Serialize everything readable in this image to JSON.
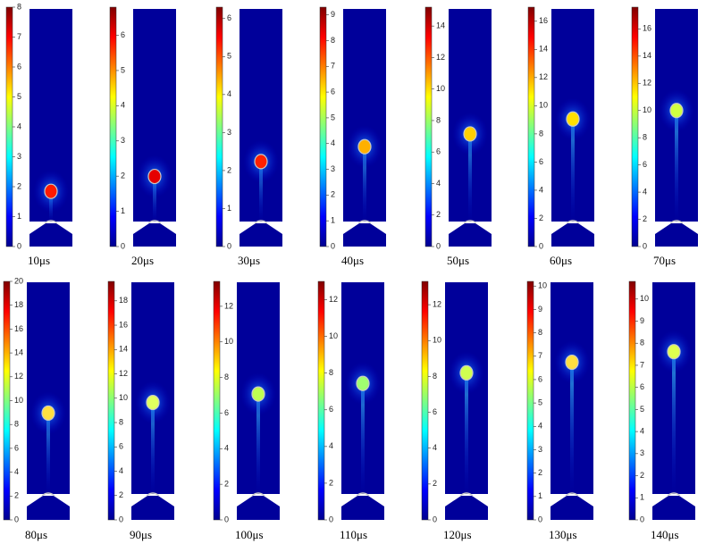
{
  "panels": [
    {
      "label": "10μs",
      "lim": [
        0,
        8
      ],
      "ticks": [
        0,
        1,
        2,
        3,
        4,
        5,
        6,
        7,
        8
      ]
    },
    {
      "label": "20μs",
      "lim": [
        0,
        6.8
      ],
      "ticks": [
        0,
        1,
        2,
        3,
        4,
        5,
        6
      ]
    },
    {
      "label": "30μs",
      "lim": [
        0,
        6.3
      ],
      "ticks": [
        0,
        1,
        2,
        3,
        4,
        5,
        6
      ]
    },
    {
      "label": "40μs",
      "lim": [
        0,
        9.3
      ],
      "ticks": [
        0,
        1,
        2,
        3,
        4,
        5,
        6,
        7,
        8,
        9
      ]
    },
    {
      "label": "50μs",
      "lim": [
        0,
        15.2
      ],
      "ticks": [
        0,
        2,
        4,
        6,
        8,
        10,
        12,
        14
      ]
    },
    {
      "label": "60μs",
      "lim": [
        0,
        17
      ],
      "ticks": [
        0,
        2,
        4,
        6,
        8,
        10,
        12,
        14,
        16
      ]
    },
    {
      "label": "70μs",
      "lim": [
        0,
        17.6
      ],
      "ticks": [
        0,
        2,
        4,
        6,
        8,
        10,
        12,
        14,
        16
      ]
    },
    {
      "label": "80μs",
      "lim": [
        0,
        20
      ],
      "ticks": [
        0,
        2,
        4,
        6,
        8,
        10,
        12,
        14,
        16,
        18,
        20
      ]
    },
    {
      "label": "90μs",
      "lim": [
        0,
        19.6
      ],
      "ticks": [
        0,
        2,
        4,
        6,
        8,
        10,
        12,
        14,
        16,
        18
      ]
    },
    {
      "label": "100μs",
      "lim": [
        0,
        13.4
      ],
      "ticks": [
        0,
        2,
        4,
        6,
        8,
        10,
        12
      ]
    },
    {
      "label": "110μs",
      "lim": [
        0,
        13
      ],
      "ticks": [
        0,
        2,
        4,
        6,
        8,
        10,
        12
      ]
    },
    {
      "label": "120μs",
      "lim": [
        0,
        13.3
      ],
      "ticks": [
        0,
        2,
        4,
        6,
        8,
        10,
        12
      ]
    },
    {
      "label": "130μs",
      "lim": [
        0,
        10.2
      ],
      "ticks": [
        0,
        1,
        2,
        3,
        4,
        5,
        6,
        7,
        8,
        9,
        10
      ]
    },
    {
      "label": "140μs",
      "lim": [
        0,
        10.8
      ],
      "ticks": [
        0,
        1,
        2,
        3,
        4,
        5,
        6,
        7,
        8,
        9,
        10
      ]
    }
  ]
}
